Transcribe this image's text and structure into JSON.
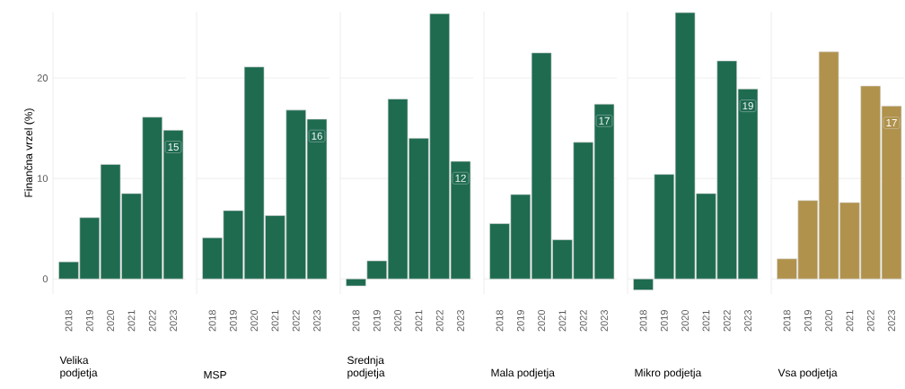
{
  "chart_data": [
    {
      "type": "bar",
      "title": "Velika podjetja",
      "ylabel": "Finančna vrzel (%)",
      "categories": [
        "2018",
        "2019",
        "2020",
        "2021",
        "2022",
        "2023"
      ],
      "values": [
        1.7,
        6.1,
        11.4,
        8.5,
        16.1,
        14.8
      ],
      "value_labels": [
        null,
        null,
        null,
        null,
        null,
        "15"
      ],
      "color": "#1e6b50",
      "ylim": [
        -1.5,
        26.6
      ],
      "yticks": [
        0,
        10,
        20
      ],
      "grid": "y"
    },
    {
      "type": "bar",
      "title": "MSP",
      "categories": [
        "2018",
        "2019",
        "2020",
        "2021",
        "2022",
        "2023"
      ],
      "values": [
        4.1,
        6.8,
        21.1,
        6.3,
        16.8,
        15.9
      ],
      "value_labels": [
        null,
        null,
        null,
        null,
        null,
        "16"
      ],
      "color": "#1e6b50",
      "ylim": [
        -1.5,
        26.6
      ],
      "yticks": [
        0,
        10,
        20
      ],
      "grid": "y",
      "tick_labels": "x"
    },
    {
      "type": "bar",
      "title": "Srednja podjetja",
      "categories": [
        "2018",
        "2019",
        "2020",
        "2021",
        "2022",
        "2023"
      ],
      "values": [
        -0.7,
        1.8,
        17.9,
        14.0,
        26.4,
        11.7
      ],
      "value_labels": [
        null,
        null,
        null,
        null,
        null,
        "12"
      ],
      "color": "#1e6b50",
      "ylim": [
        -1.5,
        26.6
      ],
      "yticks": [
        0,
        10,
        20
      ],
      "grid": "y",
      "tick_labels": "x"
    },
    {
      "type": "bar",
      "title": "Mala podjetja",
      "categories": [
        "2018",
        "2019",
        "2020",
        "2021",
        "2022",
        "2023"
      ],
      "values": [
        5.5,
        8.4,
        22.5,
        3.9,
        13.6,
        17.4
      ],
      "value_labels": [
        null,
        null,
        null,
        null,
        null,
        "17"
      ],
      "color": "#1e6b50",
      "ylim": [
        -1.5,
        26.6
      ],
      "yticks": [
        0,
        10,
        20
      ],
      "grid": "y",
      "tick_labels": "x"
    },
    {
      "type": "bar",
      "title": "Mikro podjetja",
      "categories": [
        "2018",
        "2019",
        "2020",
        "2021",
        "2022",
        "2023"
      ],
      "values": [
        -1.1,
        10.4,
        26.5,
        8.5,
        21.7,
        18.9
      ],
      "value_labels": [
        null,
        null,
        null,
        null,
        null,
        "19"
      ],
      "color": "#1e6b50",
      "ylim": [
        -1.5,
        26.6
      ],
      "yticks": [
        0,
        10,
        20
      ],
      "grid": "y",
      "tick_labels": "x"
    },
    {
      "type": "bar",
      "title": "Vsa podjetja",
      "categories": [
        "2018",
        "2019",
        "2020",
        "2021",
        "2022",
        "2023"
      ],
      "values": [
        2.0,
        7.8,
        22.6,
        7.6,
        19.2,
        17.2
      ],
      "value_labels": [
        null,
        null,
        null,
        null,
        null,
        "17"
      ],
      "color": "#b0924c",
      "ylim": [
        -1.5,
        26.6
      ],
      "yticks": [
        0,
        10,
        20
      ],
      "grid": "y",
      "tick_labels": "x"
    }
  ]
}
